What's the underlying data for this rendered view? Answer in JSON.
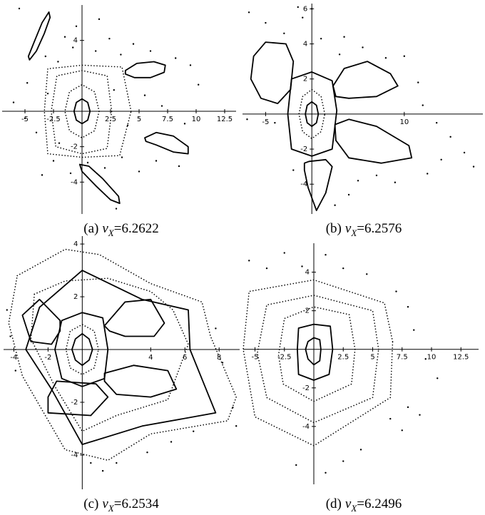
{
  "chart_data": [
    {
      "type": "line",
      "color": "#000000",
      "xlim": [
        -7,
        13.5
      ],
      "ylim": [
        -5.8,
        6
      ],
      "xticks": [
        -5,
        -2.5,
        2.5,
        5,
        7.5,
        10,
        12.5
      ],
      "yticks": [
        -4,
        -2,
        4
      ],
      "caption": {
        "label": "(a)",
        "symbol": "ν",
        "subscript": "X",
        "value": "=6.2622"
      },
      "series": [
        {
          "style": "solid",
          "x": [
            0.7,
            0.5,
            0,
            -0.5,
            -0.7,
            -0.5,
            0,
            0.5
          ],
          "values": [
            0,
            0.5,
            0.7,
            0.5,
            0,
            -0.5,
            -0.7,
            -0.5
          ]
        },
        {
          "style": "dotted",
          "x": [
            1.5,
            1.1,
            0,
            -1.1,
            -1.5,
            -1.1,
            0,
            1.1
          ],
          "values": [
            0,
            1.1,
            1.5,
            1.1,
            0,
            -1.1,
            -1.5,
            -1.1
          ]
        },
        {
          "style": "dotted",
          "x": [
            2.6,
            2.2,
            0,
            -2.2,
            -2.7,
            -2.3,
            0,
            2.2
          ],
          "values": [
            0,
            2.0,
            2.3,
            2.0,
            0,
            -2.0,
            -2.4,
            -2.1
          ]
        },
        {
          "style": "dotted",
          "x": [
            4.3,
            3.5,
            0,
            -3,
            -3.3,
            -3,
            0,
            3.3
          ],
          "values": [
            0,
            2.5,
            2.6,
            2.4,
            0,
            -2.4,
            -2.6,
            -2.5
          ]
        },
        {
          "style": "solid",
          "x": [
            -4.6,
            -4.0,
            -3.3,
            -2.8,
            -2.9,
            -3.5,
            -4.2,
            -4.7
          ],
          "values": [
            2.9,
            3.4,
            4.4,
            5.3,
            5.6,
            5.0,
            3.9,
            3.1
          ]
        },
        {
          "style": "solid",
          "x": [
            3.8,
            4.8,
            6.3,
            7.3,
            7.2,
            6.0,
            4.6,
            3.8
          ],
          "values": [
            2.3,
            2.7,
            2.8,
            2.6,
            2.2,
            1.9,
            1.9,
            2.1
          ]
        },
        {
          "style": "solid",
          "x": [
            5.5,
            6.5,
            8.0,
            9.3,
            9.3,
            8.0,
            6.5,
            5.6
          ],
          "values": [
            -1.5,
            -1.2,
            -1.4,
            -2.0,
            -2.4,
            -2.3,
            -1.9,
            -1.7
          ]
        },
        {
          "style": "solid",
          "x": [
            -0.2,
            0.6,
            1.8,
            3.2,
            3.3,
            2.5,
            1.2,
            0.0
          ],
          "values": [
            -3.0,
            -3.1,
            -3.8,
            -4.8,
            -5.2,
            -5.0,
            -4.2,
            -3.4
          ]
        },
        {
          "style": "dots",
          "x": [
            -5.5,
            -4.8,
            -3.2,
            -2.1,
            -1.5,
            -0.8,
            1.2,
            2.4,
            3.4,
            4.5,
            6,
            8.2,
            9.5,
            10.2,
            -6,
            -4,
            -2.5,
            -1,
            0.5,
            2,
            3.5,
            5,
            6.5,
            8.5,
            -3.5,
            -2,
            4,
            5.5,
            2.8,
            -0.5,
            1.5,
            3,
            -5,
            -3,
            7,
            9
          ],
          "values": [
            5.8,
            1.6,
            3.1,
            2.8,
            4.2,
            3.6,
            3.4,
            4.1,
            3.2,
            3.8,
            3.4,
            3.0,
            2.6,
            1.5,
            0.5,
            -1.2,
            -2.8,
            -3.5,
            -2.9,
            -3.2,
            -2.6,
            -3.4,
            -2.8,
            -3.1,
            -3.6,
            -1.8,
            -0.8,
            0.9,
            1.2,
            4.8,
            5.2,
            -5.5,
            -0.4,
            1.0,
            0.3,
            -0.7
          ]
        }
      ]
    },
    {
      "type": "line",
      "color": "#000000",
      "xlim": [
        -7.5,
        18.5
      ],
      "ylim": [
        -5.7,
        6.3
      ],
      "xticks": [
        -5,
        10
      ],
      "yticks": [
        -4,
        -2,
        2,
        4,
        6
      ],
      "caption": {
        "label": "(b)",
        "symbol": "ν",
        "subscript": "X",
        "value": "=6.2576"
      },
      "series": [
        {
          "style": "solid",
          "x": [
            0.7,
            0.5,
            0,
            -0.5,
            -0.7,
            -0.5,
            0,
            0.5
          ],
          "values": [
            0,
            0.5,
            0.7,
            0.5,
            0,
            -0.5,
            -0.7,
            -0.5
          ]
        },
        {
          "style": "dotted",
          "x": [
            1.4,
            1.0,
            0,
            -1.0,
            -1.4,
            -1.0,
            0,
            1.0
          ],
          "values": [
            0,
            1.0,
            1.4,
            1.0,
            0,
            -1.0,
            -1.4,
            -1.0
          ]
        },
        {
          "style": "solid",
          "x": [
            2.7,
            2.2,
            0,
            -2.2,
            -2.6,
            -2.2,
            0,
            2.2
          ],
          "values": [
            0.2,
            1.9,
            2.4,
            2.0,
            0,
            -2.0,
            -2.4,
            -2.0
          ]
        },
        {
          "style": "solid",
          "x": [
            2.3,
            3.5,
            6,
            8.5,
            9.3,
            7,
            4,
            2.6
          ],
          "values": [
            1.6,
            2.6,
            3.0,
            2.3,
            1.6,
            1.0,
            0.9,
            1.0
          ]
        },
        {
          "style": "solid",
          "x": [
            2.5,
            4,
            7,
            10.5,
            10.8,
            7.5,
            4,
            2.6
          ],
          "values": [
            -0.6,
            -0.3,
            -0.7,
            -1.8,
            -2.5,
            -2.8,
            -2.5,
            -1.5
          ]
        },
        {
          "style": "solid",
          "x": [
            -0.3,
            1.5,
            2.2,
            1.5,
            0.5,
            -0.4,
            -0.8,
            -0.8
          ],
          "values": [
            -2.7,
            -2.6,
            -3.0,
            -4.5,
            -5.5,
            -4.2,
            -3.2,
            -2.8
          ]
        },
        {
          "style": "solid",
          "x": [
            -6.3,
            -5,
            -2.8,
            -2,
            -2.3,
            -3.7,
            -5.5,
            -6.6
          ],
          "values": [
            3.3,
            4.1,
            4.0,
            3.0,
            1.4,
            0.6,
            0.9,
            2.0
          ]
        },
        {
          "style": "dots",
          "x": [
            -6.8,
            -5,
            -3,
            -1,
            3,
            5.5,
            8,
            10,
            11.5,
            12,
            13.5,
            15,
            16.5,
            17.5,
            -7,
            -4,
            -2,
            2.5,
            4,
            5,
            7,
            9,
            12.5,
            14,
            -1.5,
            0,
            1,
            3.5
          ],
          "values": [
            5.8,
            5.2,
            4.6,
            5.5,
            3.4,
            3.8,
            3.2,
            3.3,
            1.8,
            0.5,
            -0.5,
            -1.3,
            -2.2,
            -3.0,
            -0.3,
            -0.5,
            -3.2,
            -5.2,
            -4.6,
            -3.8,
            -3.5,
            -3.9,
            -3.4,
            -2.6,
            6.1,
            6.0,
            4.3,
            4.4
          ]
        }
      ]
    },
    {
      "type": "line",
      "color": "#000000",
      "xlim": [
        -4.6,
        9.2
      ],
      "ylim": [
        -5.3,
        4.3
      ],
      "xticks": [
        -4,
        -2,
        4,
        6,
        8
      ],
      "yticks": [
        -4,
        -2,
        2,
        4
      ],
      "caption": {
        "label": "(c)",
        "symbol": "ν",
        "subscript": "X",
        "value": "=6.2534"
      },
      "series": [
        {
          "style": "solid",
          "x": [
            0.6,
            0.4,
            0,
            -0.4,
            -0.6,
            -0.4,
            0,
            0.4
          ],
          "values": [
            0,
            0.4,
            0.6,
            0.4,
            0,
            -0.4,
            -0.6,
            -0.4
          ]
        },
        {
          "style": "dotted",
          "x": [
            0.95,
            0.7,
            0,
            -0.7,
            -0.95,
            -0.7,
            0,
            0.7
          ],
          "values": [
            0,
            0.7,
            0.95,
            0.7,
            0,
            -0.7,
            -0.95,
            -0.7
          ]
        },
        {
          "style": "solid",
          "x": [
            1.5,
            1.2,
            0,
            -1.2,
            -1.6,
            -1.2,
            0,
            1.3
          ],
          "values": [
            0,
            1.2,
            1.4,
            1.1,
            0,
            -1.1,
            -1.4,
            -1.1
          ]
        },
        {
          "style": "solid",
          "x": [
            1.3,
            2.5,
            4,
            4.8,
            4.2,
            2.5,
            1.6
          ],
          "values": [
            0.9,
            1.8,
            1.9,
            1.0,
            0.5,
            0.5,
            0.7
          ]
        },
        {
          "style": "solid",
          "x": [
            1.3,
            3,
            5,
            5.5,
            4,
            2,
            1.3
          ],
          "values": [
            -0.9,
            -0.6,
            -0.8,
            -1.5,
            -1.8,
            -1.7,
            -1.2
          ]
        },
        {
          "style": "solid",
          "x": [
            -1.3,
            -2.5,
            -3.5,
            -3,
            -1.8,
            -1.3
          ],
          "values": [
            1.1,
            1.9,
            1.3,
            0.3,
            0.2,
            0.7
          ]
        },
        {
          "style": "solid",
          "x": [
            -1.5,
            -2,
            -2,
            0.5,
            1.5,
            0.8
          ],
          "values": [
            -1.2,
            -1.8,
            -2.4,
            -2.5,
            -1.8,
            -1.3
          ]
        },
        {
          "style": "dotted",
          "x": [
            -2.8,
            -1,
            1.5,
            4,
            5.3,
            6.2,
            5,
            2,
            0,
            -1.6,
            -3
          ],
          "values": [
            2.1,
            2.6,
            2.7,
            2.2,
            1.5,
            0.2,
            -1.9,
            -2.5,
            -3.1,
            -1.4,
            0.4
          ]
        },
        {
          "style": "solid",
          "x": [
            -3.3,
            -2.5,
            0,
            3.5,
            6.2,
            6.3,
            7.8,
            3.5,
            0,
            -1.8
          ],
          "values": [
            0,
            1.6,
            3,
            1.9,
            1.5,
            0,
            -2.4,
            -2.9,
            -3.6,
            -1.5
          ]
        },
        {
          "style": "dotted",
          "x": [
            -3.8,
            -1,
            1,
            4,
            7,
            7.5,
            9,
            8.5,
            4,
            1.5,
            -1,
            -3.5,
            -4.3
          ],
          "values": [
            2.8,
            3.8,
            3.6,
            2.5,
            1.8,
            0.5,
            -1.8,
            -2.7,
            -3.2,
            -4.2,
            -3.8,
            -1,
            1
          ]
        },
        {
          "style": "dots",
          "x": [
            -4.4,
            -4.2,
            -3.9,
            7.8,
            8.2,
            8.8,
            9,
            6.5,
            5.2,
            3.8,
            2,
            1.2,
            0.5
          ],
          "values": [
            1.5,
            0.5,
            -0.8,
            0.8,
            -0.5,
            -2.2,
            -2.9,
            -3.1,
            -3.5,
            -3.9,
            -4.3,
            -4.6,
            -4.3
          ]
        }
      ]
    },
    {
      "type": "line",
      "color": "#000000",
      "xlim": [
        -6,
        14
      ],
      "ylim": [
        -7,
        5.5
      ],
      "xticks": [
        -5,
        -2.5,
        2.5,
        5,
        7.5,
        10,
        12.5
      ],
      "yticks": [
        -4,
        -2,
        2,
        4
      ],
      "caption": {
        "label": "(d)",
        "symbol": "ν",
        "subscript": "X",
        "value": "=6.2496"
      },
      "series": [
        {
          "style": "solid",
          "x": [
            0.6,
            0.5,
            0,
            -0.5,
            -0.7,
            -0.5,
            0,
            0.5
          ],
          "values": [
            0,
            0.5,
            0.6,
            0.4,
            0,
            -0.5,
            -0.8,
            -0.6
          ]
        },
        {
          "style": "solid",
          "x": [
            1.6,
            1.4,
            0,
            -1.3,
            -1.4,
            -1.3,
            0,
            1.3
          ],
          "values": [
            0,
            1.2,
            1.3,
            1.1,
            0,
            -1.3,
            -1.6,
            -1.3
          ]
        },
        {
          "style": "dotted",
          "x": [
            3.5,
            3,
            0,
            -2.5,
            -3,
            -2.6,
            0,
            3.2
          ],
          "values": [
            0,
            1.8,
            2.2,
            1.6,
            -0.3,
            -1.8,
            -2.7,
            -1.8
          ]
        },
        {
          "style": "dotted",
          "x": [
            5.5,
            5,
            0,
            -4,
            -4.8,
            -4,
            0,
            5
          ],
          "values": [
            0,
            2,
            2.8,
            2.3,
            -0.2,
            -2.5,
            -3.8,
            -2.5
          ]
        },
        {
          "style": "dotted",
          "x": [
            6.7,
            6,
            0,
            -5.5,
            -6,
            -5,
            0,
            6.5
          ],
          "values": [
            0.4,
            2.4,
            3.6,
            3.0,
            0,
            -3.5,
            -5,
            -2.5
          ]
        },
        {
          "style": "dots",
          "x": [
            -5.5,
            -4,
            -2.5,
            -1,
            1,
            2.5,
            4.5,
            7,
            8,
            8.5,
            9.5,
            10.5,
            8,
            6.5,
            4,
            2.5,
            1,
            -1.5,
            7.5,
            9
          ],
          "values": [
            4.6,
            4.2,
            5.0,
            4.3,
            4.9,
            4.2,
            3.9,
            3.0,
            2.2,
            1.0,
            -0.5,
            -1.5,
            -3,
            -3.6,
            -5.2,
            -5.8,
            -6.4,
            -6.0,
            -4.2,
            -3.4
          ]
        }
      ]
    }
  ]
}
